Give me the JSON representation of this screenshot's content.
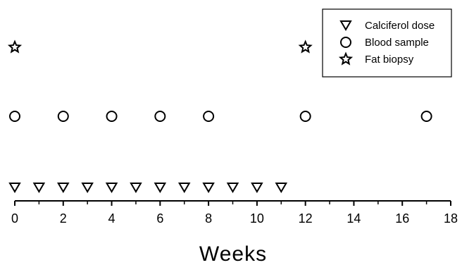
{
  "chart_data": {
    "type": "scatter",
    "xlabel": "Weeks",
    "ylabel": "",
    "title": "",
    "xlim": [
      0,
      18
    ],
    "xticks": [
      0,
      2,
      4,
      6,
      8,
      10,
      12,
      14,
      16,
      18
    ],
    "grid": false,
    "legend": "top-right",
    "series": [
      {
        "name": "Calciferol dose",
        "marker": "triangle-down",
        "x": [
          0,
          1,
          2,
          3,
          4,
          5,
          6,
          7,
          8,
          9,
          10,
          11
        ]
      },
      {
        "name": "Blood sample",
        "marker": "circle",
        "x": [
          0,
          2,
          4,
          6,
          8,
          12,
          17
        ]
      },
      {
        "name": "Fat biopsy",
        "marker": "star",
        "x": [
          0,
          12
        ]
      }
    ],
    "colors": {
      "marker": "#000000",
      "axis": "#000000"
    }
  }
}
